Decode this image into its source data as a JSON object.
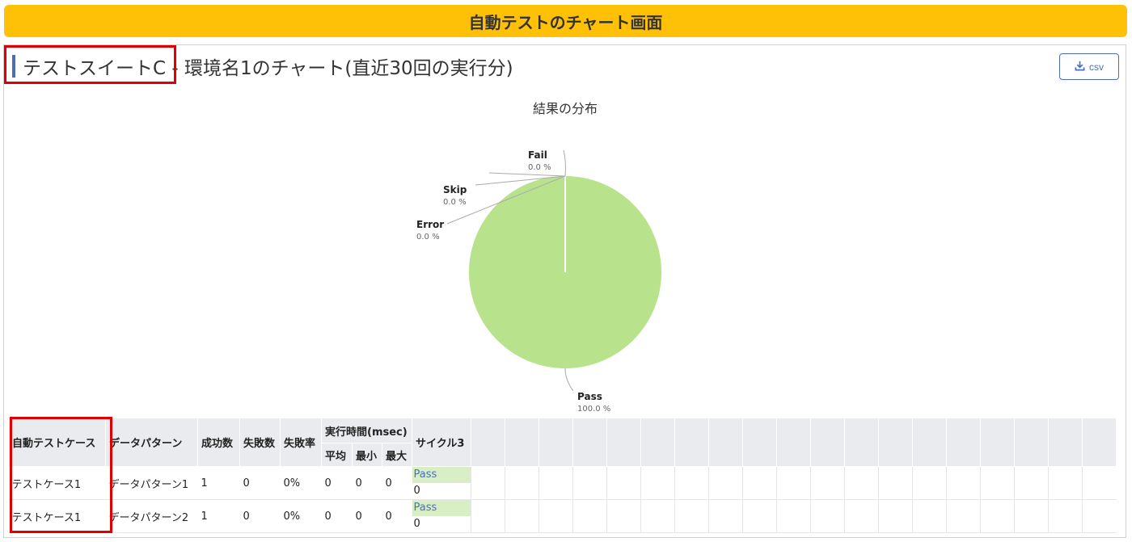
{
  "banner": {
    "title": "自動テストのチャート画面"
  },
  "header": {
    "title": "テストスイートC - 環境名1のチャート(直近30回の実行分)",
    "csv_label": "csv",
    "csv_icon": "download-icon"
  },
  "chart_data": {
    "type": "pie",
    "title": "結果の分布",
    "slices": [
      {
        "label": "Pass",
        "percent": "100.0 %",
        "value": 100.0,
        "color": "#b8e28c"
      },
      {
        "label": "Fail",
        "percent": "0.0 %",
        "value": 0.0
      },
      {
        "label": "Skip",
        "percent": "0.0 %",
        "value": 0.0
      },
      {
        "label": "Error",
        "percent": "0.0 %",
        "value": 0.0
      }
    ]
  },
  "table": {
    "headers": {
      "test_case": "自動テストケース",
      "data_pattern": "データパターン",
      "success": "成功数",
      "failure": "失敗数",
      "failure_rate": "失敗率",
      "exec_time": "実行時間(msec)",
      "avg": "平均",
      "min": "最小",
      "max": "最大",
      "cycle": "サイクル3"
    },
    "rows": [
      {
        "test_case": "テストケース1",
        "data_pattern": "データパターン1",
        "success": "1",
        "failure": "0",
        "failure_rate": "0%",
        "avg": "0",
        "min": "0",
        "max": "0",
        "cycle_status": "Pass",
        "cycle_value": "0"
      },
      {
        "test_case": "テストケース1",
        "data_pattern": "データパターン2",
        "success": "1",
        "failure": "0",
        "failure_rate": "0%",
        "avg": "0",
        "min": "0",
        "max": "0",
        "cycle_status": "Pass",
        "cycle_value": "0"
      }
    ]
  }
}
